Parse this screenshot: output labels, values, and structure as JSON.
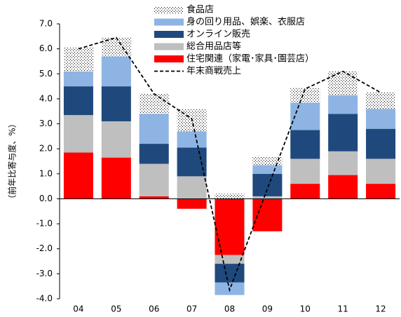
{
  "chart_data": {
    "type": "bar",
    "stacked": true,
    "y_label": "（前年比寄与度、%）",
    "categories": [
      "04",
      "05",
      "06",
      "07",
      "08",
      "09",
      "10",
      "11",
      "12"
    ],
    "series": [
      {
        "name": "食品店",
        "color": "#000000",
        "pattern": "dots",
        "values": [
          0.95,
          0.75,
          0.8,
          0.9,
          0.2,
          0.35,
          0.6,
          0.95,
          0.65
        ]
      },
      {
        "name": "身の回り用品、娯楽、衣服店",
        "color": "#8eb4e3",
        "values": [
          0.6,
          1.2,
          1.2,
          0.65,
          -0.5,
          0.35,
          1.1,
          0.75,
          0.8
        ]
      },
      {
        "name": "オンライン販売",
        "color": "#1f497d",
        "values": [
          1.15,
          1.4,
          0.8,
          1.15,
          -0.75,
          0.9,
          1.15,
          1.5,
          1.2
        ]
      },
      {
        "name": "総合用品店等",
        "color": "#bfbfbf",
        "values": [
          1.5,
          1.45,
          1.3,
          0.9,
          -0.35,
          0.1,
          1.0,
          0.95,
          1.0
        ]
      },
      {
        "name": "住宅関連（家電･家具･園芸店）",
        "color": "#ff0000",
        "values": [
          1.85,
          1.65,
          0.1,
          -0.4,
          -2.25,
          -1.3,
          0.6,
          0.95,
          0.6
        ]
      }
    ],
    "line": {
      "name": "年末商戦売上",
      "color": "#000000",
      "dashed": true,
      "values": [
        6.0,
        6.45,
        4.2,
        3.2,
        -3.65,
        0.4,
        4.4,
        5.1,
        4.25
      ]
    },
    "ylim": [
      -4,
      7
    ],
    "yticks": [
      {
        "value": -4,
        "label": "-4.0"
      },
      {
        "value": -3,
        "label": "-3.0"
      },
      {
        "value": -2,
        "label": "-2.0"
      },
      {
        "value": -1,
        "label": "-1.0"
      },
      {
        "value": 0,
        "label": "0.0"
      },
      {
        "value": 1,
        "label": "1.0"
      },
      {
        "value": 2,
        "label": "2.0"
      },
      {
        "value": 3,
        "label": "3.0"
      },
      {
        "value": 4,
        "label": "4.0"
      },
      {
        "value": 5,
        "label": "5.0"
      },
      {
        "value": 6,
        "label": "6.0"
      },
      {
        "value": 7,
        "label": "7.0"
      }
    ],
    "grid": false,
    "legend": "top"
  }
}
